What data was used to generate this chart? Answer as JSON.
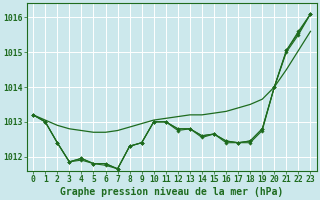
{
  "background_color": "#cce8ec",
  "grid_color": "#ffffff",
  "line_color": "#1e6b1e",
  "xlabel": "Graphe pression niveau de la mer (hPa)",
  "xlabel_fontsize": 7.0,
  "tick_fontsize": 5.8,
  "ytick_labels": [
    1012,
    1013,
    1014,
    1015,
    1016
  ],
  "ylim": [
    1011.6,
    1016.4
  ],
  "xlim": [
    -0.5,
    23.5
  ],
  "series_smooth": [
    1013.2,
    1013.05,
    1012.9,
    1012.8,
    1012.75,
    1012.7,
    1012.7,
    1012.75,
    1012.85,
    1012.95,
    1013.05,
    1013.1,
    1013.15,
    1013.2,
    1013.2,
    1013.25,
    1013.3,
    1013.4,
    1013.5,
    1013.65,
    1014.0,
    1014.5,
    1015.05,
    1015.6
  ],
  "series1": [
    1013.2,
    1013.0,
    1012.4,
    1011.85,
    1011.95,
    1011.8,
    1011.8,
    1011.65,
    1012.3,
    1012.4,
    1013.0,
    1013.0,
    1012.8,
    1012.8,
    1012.6,
    1012.65,
    1012.45,
    1012.4,
    1012.45,
    1012.8,
    1014.0,
    1015.05,
    1015.6,
    1016.1
  ],
  "series2": [
    1013.2,
    1013.0,
    1012.4,
    1011.85,
    1011.95,
    1011.8,
    1011.8,
    1011.65,
    1012.3,
    1012.4,
    1013.0,
    1013.0,
    1012.8,
    1012.8,
    1012.6,
    1012.65,
    1012.45,
    1012.4,
    1012.45,
    1012.8,
    1014.0,
    1015.05,
    1015.55,
    1016.1
  ],
  "series3": [
    1013.2,
    1013.0,
    1012.4,
    1011.85,
    1011.9,
    1011.8,
    1011.75,
    1011.65,
    1012.3,
    1012.4,
    1013.0,
    1013.0,
    1012.75,
    1012.8,
    1012.55,
    1012.65,
    1012.4,
    1012.4,
    1012.4,
    1012.75,
    1014.0,
    1015.0,
    1015.5,
    1016.1
  ]
}
